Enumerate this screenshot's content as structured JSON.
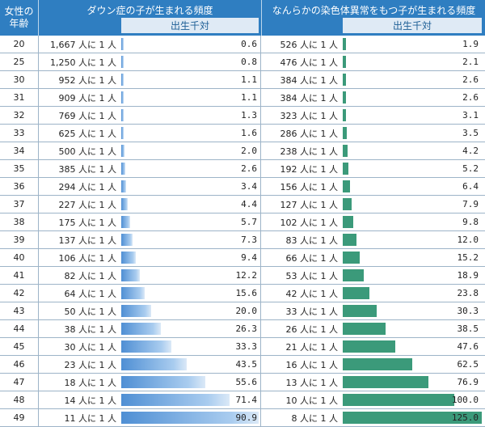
{
  "header": {
    "age_label": [
      "女性の",
      "年齢"
    ],
    "down_title": "ダウン症の子が生まれる頻度",
    "chrom_title": "なんらかの染色体異常をもつ子が生まれる頻度",
    "down_sub": "出生千対",
    "chrom_sub": "出生千対"
  },
  "colors": {
    "header": "#2f7ec1",
    "down_bar": "#4f8fd4",
    "chrom_bar": "#3b9a7a"
  },
  "chart_data": {
    "type": "bar",
    "x": [
      20,
      25,
      30,
      31,
      32,
      33,
      34,
      35,
      36,
      37,
      38,
      39,
      40,
      41,
      42,
      43,
      44,
      45,
      46,
      47,
      48,
      49
    ],
    "categories": [
      "20",
      "25",
      "30",
      "31",
      "32",
      "33",
      "34",
      "35",
      "36",
      "37",
      "38",
      "39",
      "40",
      "41",
      "42",
      "43",
      "44",
      "45",
      "46",
      "47",
      "48",
      "49"
    ],
    "series": [
      {
        "name": "ダウン症の子が生まれる頻度",
        "freq": [
          "1,667 人に 1 人",
          "1,250 人に 1 人",
          "952 人に 1 人",
          "909 人に 1 人",
          "769 人に 1 人",
          "625 人に 1 人",
          "500 人に 1 人",
          "385 人に 1 人",
          "294 人に 1 人",
          "227 人に 1 人",
          "175 人に 1 人",
          "137 人に 1 人",
          "106 人に 1 人",
          "82 人に 1 人",
          "64 人に 1 人",
          "50 人に 1 人",
          "38 人に 1 人",
          "30 人に 1 人",
          "23 人に 1 人",
          "18 人に 1 人",
          "14 人に 1 人",
          "11 人に 1 人"
        ],
        "values": [
          0.6,
          0.8,
          1.1,
          1.1,
          1.3,
          1.6,
          2.0,
          2.6,
          3.4,
          4.4,
          5.7,
          7.3,
          9.4,
          12.2,
          15.6,
          20.0,
          26.3,
          33.3,
          43.5,
          55.6,
          71.4,
          90.9
        ]
      },
      {
        "name": "なんらかの染色体異常をもつ子が生まれる頻度",
        "freq": [
          "526 人に 1 人",
          "476 人に 1 人",
          "384 人に 1 人",
          "384 人に 1 人",
          "323 人に 1 人",
          "286 人に 1 人",
          "238 人に 1 人",
          "192 人に 1 人",
          "156 人に 1 人",
          "127 人に 1 人",
          "102 人に 1 人",
          "83 人に 1 人",
          "66 人に 1 人",
          "53 人に 1 人",
          "42 人に 1 人",
          "33 人に 1 人",
          "26 人に 1 人",
          "21 人に 1 人",
          "16 人に 1 人",
          "13 人に 1 人",
          "10 人に 1 人",
          "8 人に 1 人"
        ],
        "values": [
          1.9,
          2.1,
          2.6,
          2.6,
          3.1,
          3.5,
          4.2,
          5.2,
          6.4,
          7.9,
          9.8,
          12.0,
          15.2,
          18.9,
          23.8,
          30.3,
          38.5,
          47.6,
          62.5,
          76.9,
          100.0,
          125.0
        ]
      }
    ]
  }
}
